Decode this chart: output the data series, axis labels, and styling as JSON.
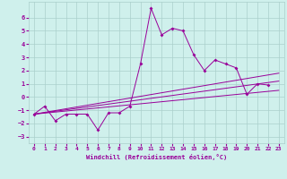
{
  "xlabel": "Windchill (Refroidissement éolien,°C)",
  "background_color": "#cff0ec",
  "grid_color": "#aacfcb",
  "line_color": "#990099",
  "xlim": [
    -0.5,
    23.5
  ],
  "ylim": [
    -3.5,
    7.2
  ],
  "xticks": [
    0,
    1,
    2,
    3,
    4,
    5,
    6,
    7,
    8,
    9,
    10,
    11,
    12,
    13,
    14,
    15,
    16,
    17,
    18,
    19,
    20,
    21,
    22,
    23
  ],
  "yticks": [
    -3,
    -2,
    -1,
    0,
    1,
    2,
    3,
    4,
    5,
    6
  ],
  "series1_x": [
    0,
    1,
    2,
    3,
    4,
    5,
    6,
    7,
    8,
    9,
    10,
    11,
    12,
    13,
    14,
    15,
    16,
    17,
    18,
    19,
    20,
    21,
    22
  ],
  "series1_y": [
    -1.3,
    -0.7,
    -1.8,
    -1.3,
    -1.3,
    -1.3,
    -2.5,
    -1.2,
    -1.2,
    -0.7,
    2.5,
    6.7,
    4.7,
    5.2,
    5.0,
    3.2,
    2.0,
    2.8,
    2.5,
    2.2,
    0.2,
    1.0,
    0.9
  ],
  "trend1_x": [
    0,
    23
  ],
  "trend1_y": [
    -1.3,
    1.8
  ],
  "trend2_x": [
    0,
    23
  ],
  "trend2_y": [
    -1.3,
    1.2
  ],
  "trend3_x": [
    0,
    23
  ],
  "trend3_y": [
    -1.3,
    0.5
  ]
}
